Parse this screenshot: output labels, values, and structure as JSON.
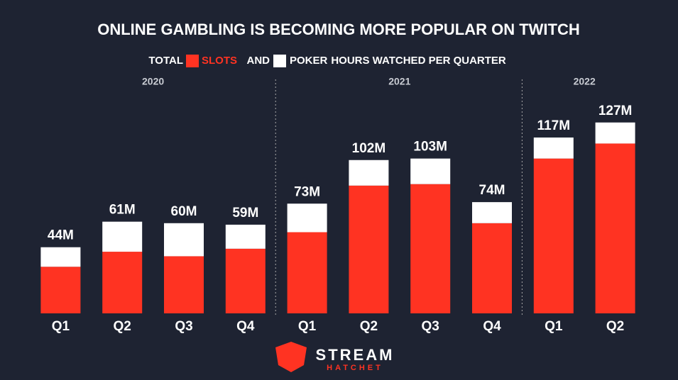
{
  "chart_data": {
    "type": "stacked_bar",
    "title": "ONLINE GAMBLING IS BECOMING MORE POPULAR ON TWITCH",
    "subtitle_prefix": "TOTAL",
    "subtitle_joiner": "AND",
    "subtitle_suffix": "HOURS WATCHED PER QUARTER",
    "groups": [
      {
        "label": "2020",
        "categories": [
          "Q1",
          "Q2",
          "Q3",
          "Q4"
        ]
      },
      {
        "label": "2021",
        "categories": [
          "Q1",
          "Q2",
          "Q3",
          "Q4"
        ]
      },
      {
        "label": "2022",
        "categories": [
          "Q1",
          "Q2"
        ]
      }
    ],
    "series": [
      {
        "name": "SLOTS",
        "color": "#ff3322",
        "values": [
          31,
          41,
          38,
          43,
          54,
          85,
          86,
          60,
          103,
          113
        ]
      },
      {
        "name": "POKER",
        "color": "#ffffff",
        "values": [
          13,
          20,
          22,
          16,
          19,
          17,
          17,
          14,
          14,
          14
        ]
      }
    ],
    "totals": {
      "values": [
        44,
        61,
        60,
        59,
        73,
        102,
        103,
        74,
        117,
        127
      ],
      "value_labels": [
        "44M",
        "61M",
        "60M",
        "59M",
        "73M",
        "102M",
        "103M",
        "74M",
        "117M",
        "127M"
      ]
    },
    "brand": {
      "line1": "STREAM",
      "line2": "HATCHET"
    }
  }
}
